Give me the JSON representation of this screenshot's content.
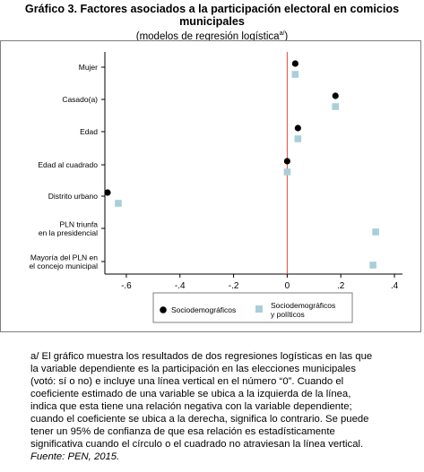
{
  "title_line1": "Gráfico 3. Factores asociados a la participación electoral en comicios",
  "title_line2": "municipales",
  "subtitle_main": "(modelos de regresión logística",
  "subtitle_sup": "a/",
  "subtitle_close": ")",
  "chart_data": {
    "type": "scatter",
    "orientation": "horizontal coefficient plot",
    "categories": [
      "Mujer",
      "Casado(a)",
      "Edad",
      "Edad al cuadrado",
      "Distrito urbano",
      "PLN triunfa en la presidencial",
      "Mayoría del PLN en el concejo municipal"
    ],
    "category_lines": [
      [
        "Mujer"
      ],
      [
        "Casado(a)"
      ],
      [
        "Edad"
      ],
      [
        "Edad al cuadrado"
      ],
      [
        "Distrito urbano"
      ],
      [
        "PLN triunfa",
        "en la presidencial"
      ],
      [
        "Mayoría del PLN en",
        "el concejo municipal"
      ]
    ],
    "series": [
      {
        "name": "Sociodemográficos",
        "marker": "circle",
        "color": "#000000",
        "values": [
          0.03,
          0.18,
          0.04,
          0.0,
          -0.67,
          null,
          null
        ]
      },
      {
        "name_lines": [
          "Sociodemográficos",
          "y políticos"
        ],
        "marker": "square",
        "color": "#a8cfd9",
        "values": [
          0.03,
          0.18,
          0.04,
          0.0,
          -0.63,
          0.33,
          0.32
        ]
      }
    ],
    "xticks": [
      -0.6,
      -0.4,
      -0.2,
      0,
      0.2,
      0.4
    ],
    "xtick_labels": [
      "-.6",
      "-.4",
      "-.2",
      "0",
      ".2",
      ".4"
    ],
    "xlim": [
      -0.68,
      0.43
    ],
    "reference_line": 0,
    "reference_color": "#e4473b",
    "grid": false,
    "legend_position": "bottom"
  },
  "note": {
    "lines": [
      "a/ El gráfico muestra los resultados de dos regresiones logísticas en las que",
      "la variable dependiente es la participación en las elecciones municipales",
      "(votó: sí o no) e incluye una línea vertical en el número “0”. Cuando el",
      "coeficiente estimado de una variable se ubica a la izquierda de la línea,",
      "indica que esta tiene una relación negativa con la variable dependiente;",
      "cuando el coeficiente se ubica a la derecha, significa lo contrario. Se puede",
      "tener un 95% de confianza de que esa relación es estadísticamente",
      "significativa cuando el círculo o el cuadrado no atraviesan la línea vertical."
    ],
    "source": "Fuente: PEN, 2015."
  }
}
